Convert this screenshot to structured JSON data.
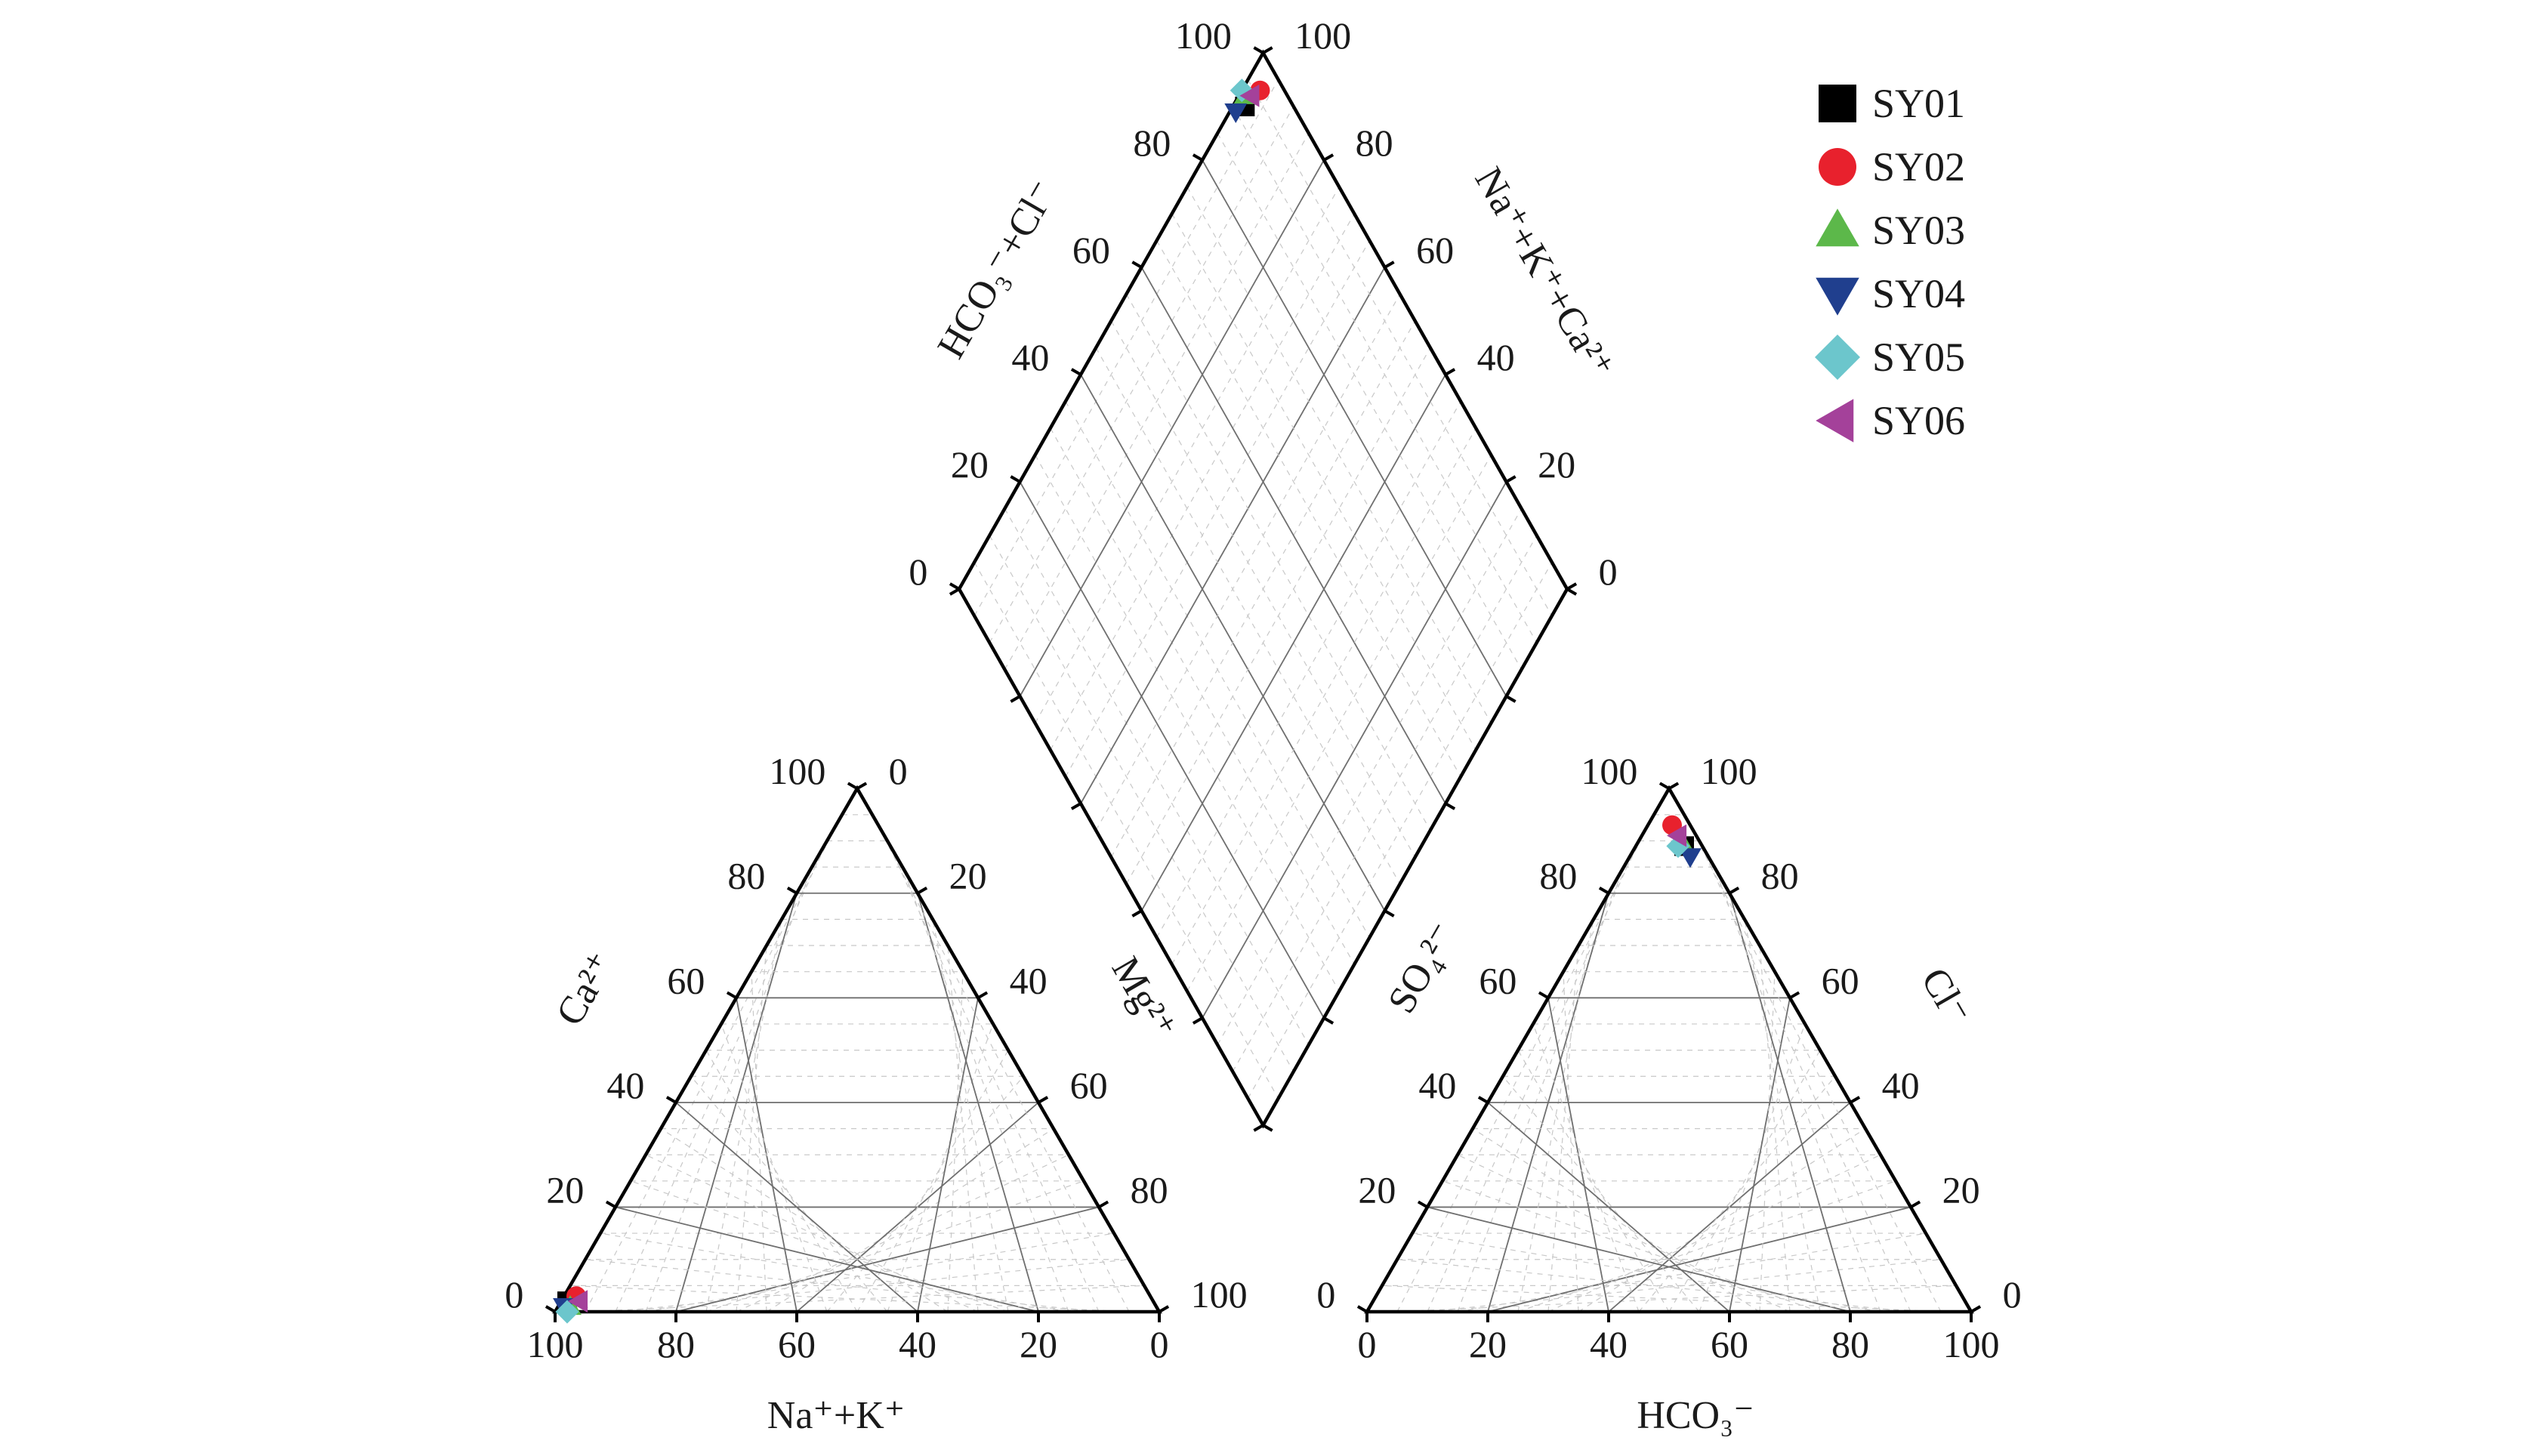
{
  "chart_data": {
    "type": "scatter",
    "subtype": "piper-diagram",
    "colors": {
      "SY01": "#000000",
      "SY02": "#e8212d",
      "SY03": "#5cb84a",
      "SY04": "#203f8e",
      "SY05": "#6cc6cc",
      "SY06": "#a4419a"
    },
    "legend": {
      "placement": "top-right",
      "items": [
        {
          "name": "SY01",
          "marker": "square"
        },
        {
          "name": "SY02",
          "marker": "circle"
        },
        {
          "name": "SY03",
          "marker": "triangle-up"
        },
        {
          "name": "SY04",
          "marker": "triangle-down"
        },
        {
          "name": "SY05",
          "marker": "diamond"
        },
        {
          "name": "SY06",
          "marker": "triangle-left"
        }
      ]
    },
    "cation_triangle": {
      "bottom_axis_title": "Na⁺+K⁺",
      "left_axis_title": "Ca²⁺",
      "right_axis_title": "Mg²⁺",
      "bottom_ticks": [
        "100",
        "80",
        "60",
        "40",
        "20",
        "0"
      ],
      "left_ticks": [
        "0",
        "20",
        "40",
        "60",
        "80",
        "100"
      ],
      "right_ticks": [
        "0",
        "20",
        "40",
        "60",
        "80",
        "100"
      ]
    },
    "anion_triangle": {
      "bottom_axis_title": "HCO₃⁻",
      "left_axis_title": "SO₄²⁻",
      "right_axis_title": "Cl⁻",
      "bottom_ticks": [
        "0",
        "20",
        "40",
        "60",
        "80",
        "100"
      ],
      "left_ticks": [
        "0",
        "20",
        "40",
        "60",
        "80",
        "100"
      ],
      "right_ticks": [
        "100",
        "80",
        "60",
        "40",
        "20",
        "0"
      ]
    },
    "diamond": {
      "left_axis_title": "HCO₃⁻+Cl⁻",
      "right_axis_title": "Na⁺+K⁺+Ca²⁺",
      "left_ticks": [
        "0",
        "20",
        "40",
        "60",
        "80",
        "100"
      ],
      "right_ticks": [
        "0",
        "20",
        "40",
        "60",
        "80",
        "100"
      ]
    },
    "samples": [
      {
        "name": "SY01",
        "ca": 1,
        "mg": 2,
        "na_k": 97,
        "so4": 8,
        "cl": 89,
        "hco3": 3
      },
      {
        "name": "SY02",
        "ca": 2,
        "mg": 3,
        "na_k": 95,
        "so4": 4,
        "cl": 93,
        "hco3": 3
      },
      {
        "name": "SY03",
        "ca": 2,
        "mg": 1,
        "na_k": 97,
        "so4": 7,
        "cl": 90,
        "hco3": 3
      },
      {
        "name": "SY04",
        "ca": 1,
        "mg": 1,
        "na_k": 98,
        "so4": 10,
        "cl": 87,
        "hco3": 3
      },
      {
        "name": "SY05",
        "ca": 2,
        "mg": 0,
        "na_k": 98,
        "so4": 7,
        "cl": 89,
        "hco3": 4
      },
      {
        "name": "SY06",
        "ca": 3,
        "mg": 2,
        "na_k": 95,
        "so4": 6,
        "cl": 91,
        "hco3": 3
      }
    ]
  }
}
